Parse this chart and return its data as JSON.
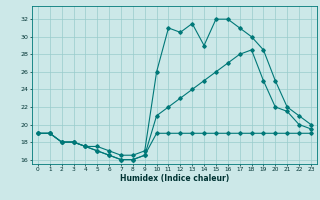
{
  "xlabel": "Humidex (Indice chaleur)",
  "xlim": [
    -0.5,
    23.5
  ],
  "ylim": [
    15.5,
    33.5
  ],
  "yticks": [
    16,
    18,
    20,
    22,
    24,
    26,
    28,
    30,
    32
  ],
  "xticks": [
    0,
    1,
    2,
    3,
    4,
    5,
    6,
    7,
    8,
    9,
    10,
    11,
    12,
    13,
    14,
    15,
    16,
    17,
    18,
    19,
    20,
    21,
    22,
    23
  ],
  "bg_color": "#cce8e8",
  "grid_color": "#99cccc",
  "line_color": "#007878",
  "line1_x": [
    0,
    1,
    2,
    3,
    4,
    5,
    6,
    7,
    8,
    9,
    10,
    11,
    12,
    13,
    14,
    15,
    16,
    17,
    18,
    19,
    20,
    21,
    22,
    23
  ],
  "line1_y": [
    19.0,
    19.0,
    18.0,
    18.0,
    17.5,
    17.0,
    16.5,
    16.0,
    16.0,
    16.5,
    19.0,
    19.0,
    19.0,
    19.0,
    19.0,
    19.0,
    19.0,
    19.0,
    19.0,
    19.0,
    19.0,
    19.0,
    19.0,
    19.0
  ],
  "line2_x": [
    0,
    1,
    2,
    3,
    4,
    5,
    6,
    7,
    8,
    9,
    10,
    11,
    12,
    13,
    14,
    15,
    16,
    17,
    18,
    19,
    20,
    21,
    22,
    23
  ],
  "line2_y": [
    19.0,
    19.0,
    18.0,
    18.0,
    17.5,
    17.0,
    16.5,
    16.0,
    16.0,
    16.5,
    21.0,
    22.0,
    23.0,
    24.0,
    25.0,
    26.0,
    27.0,
    28.0,
    28.5,
    25.0,
    22.0,
    21.5,
    20.0,
    19.5
  ],
  "line3_x": [
    0,
    1,
    2,
    3,
    4,
    5,
    6,
    7,
    8,
    9,
    10,
    11,
    12,
    13,
    14,
    15,
    16,
    17,
    18,
    19,
    20,
    21,
    22,
    23
  ],
  "line3_y": [
    19.0,
    19.0,
    18.0,
    18.0,
    17.5,
    17.5,
    17.0,
    16.5,
    16.5,
    17.0,
    26.0,
    31.0,
    30.5,
    31.5,
    29.0,
    32.0,
    32.0,
    31.0,
    30.0,
    28.5,
    25.0,
    22.0,
    21.0,
    20.0
  ]
}
